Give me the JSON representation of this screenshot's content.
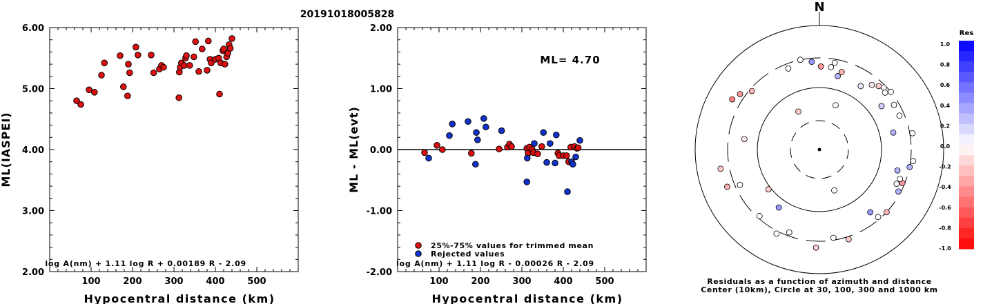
{
  "title": "20191018005828",
  "chart_data": [
    {
      "type": "scatter",
      "ylabel": "ML(IASPEI)",
      "xlabel": "Hypocentral distance (km)",
      "xlim": [
        0,
        600
      ],
      "ylim": [
        2.0,
        6.0
      ],
      "xticks": [
        "100",
        "200",
        "300",
        "400",
        "500"
      ],
      "yticks": [
        "2.00",
        "3.00",
        "4.00",
        "5.00",
        "6.00"
      ],
      "formula": "log A(nm) + 1.11 log R + 0.00189 R - 2.09",
      "series": [
        {
          "color": "#dd1111",
          "points": [
            [
              65,
              4.8
            ],
            [
              75,
              4.74
            ],
            [
              95,
              4.98
            ],
            [
              108,
              4.94
            ],
            [
              125,
              5.22
            ],
            [
              132,
              5.42
            ],
            [
              170,
              5.54
            ],
            [
              178,
              5.03
            ],
            [
              188,
              4.88
            ],
            [
              190,
              5.4
            ],
            [
              193,
              5.26
            ],
            [
              208,
              5.68
            ],
            [
              213,
              5.55
            ],
            [
              245,
              5.55
            ],
            [
              251,
              5.26
            ],
            [
              265,
              5.32
            ],
            [
              270,
              5.38
            ],
            [
              275,
              5.35
            ],
            [
              312,
              4.85
            ],
            [
              313,
              5.27
            ],
            [
              315,
              5.35
            ],
            [
              318,
              5.42
            ],
            [
              325,
              5.38
            ],
            [
              328,
              5.5
            ],
            [
              330,
              5.54
            ],
            [
              338,
              5.38
            ],
            [
              348,
              5.52
            ],
            [
              352,
              5.77
            ],
            [
              360,
              5.28
            ],
            [
              368,
              5.65
            ],
            [
              380,
              5.3
            ],
            [
              383,
              5.78
            ],
            [
              387,
              5.48
            ],
            [
              390,
              5.42
            ],
            [
              400,
              5.48
            ],
            [
              408,
              5.5
            ],
            [
              410,
              4.91
            ],
            [
              413,
              5.42
            ],
            [
              418,
              5.62
            ],
            [
              420,
              5.65
            ],
            [
              423,
              5.4
            ],
            [
              427,
              5.52
            ],
            [
              430,
              5.58
            ],
            [
              433,
              5.72
            ],
            [
              436,
              5.66
            ],
            [
              440,
              5.82
            ]
          ]
        }
      ]
    },
    {
      "type": "scatter",
      "ylabel": "ML - ML(evt)",
      "xlabel": "Hypocentral distance (km)",
      "xlim": [
        0,
        600
      ],
      "ylim": [
        -2.0,
        2.0
      ],
      "xticks": [
        "100",
        "200",
        "300",
        "400",
        "500"
      ],
      "yticks": [
        "-2.00",
        "-1.00",
        "0.00",
        "1.00",
        "2.00"
      ],
      "annotation": "ML= 4.70",
      "formula": "log A(nm) + 1.11 log R - 0.00026 R - 2.09",
      "legend": [
        "25%-75% values for trimmed mean",
        "Rejected values"
      ],
      "series": [
        {
          "name": "25%-75% values for trimmed mean",
          "color": "#dd1111",
          "points": [
            [
              65,
              -0.05
            ],
            [
              95,
              0.07
            ],
            [
              108,
              0.0
            ],
            [
              178,
              -0.06
            ],
            [
              245,
              0.01
            ],
            [
              265,
              0.04
            ],
            [
              270,
              0.09
            ],
            [
              275,
              0.05
            ],
            [
              312,
              0.02
            ],
            [
              315,
              -0.06
            ],
            [
              318,
              0.04
            ],
            [
              325,
              0.0
            ],
            [
              328,
              -0.05
            ],
            [
              338,
              -0.07
            ],
            [
              348,
              0.05
            ],
            [
              387,
              -0.06
            ],
            [
              390,
              -0.1
            ],
            [
              400,
              -0.1
            ],
            [
              408,
              -0.1
            ],
            [
              413,
              -0.2
            ],
            [
              418,
              0.04
            ],
            [
              427,
              0.05
            ],
            [
              433,
              0.02
            ],
            [
              436,
              0.03
            ]
          ]
        },
        {
          "name": "Rejected values",
          "color": "#1133cc",
          "points": [
            [
              75,
              -0.14
            ],
            [
              125,
              0.23
            ],
            [
              132,
              0.42
            ],
            [
              170,
              0.46
            ],
            [
              188,
              -0.24
            ],
            [
              190,
              0.28
            ],
            [
              193,
              0.16
            ],
            [
              208,
              0.51
            ],
            [
              213,
              0.37
            ],
            [
              251,
              0.31
            ],
            [
              313,
              -0.14
            ],
            [
              312,
              -0.53
            ],
            [
              330,
              0.1
            ],
            [
              352,
              0.28
            ],
            [
              360,
              -0.21
            ],
            [
              368,
              0.1
            ],
            [
              380,
              -0.22
            ],
            [
              383,
              0.24
            ],
            [
              410,
              -0.69
            ],
            [
              420,
              -0.2
            ],
            [
              423,
              -0.24
            ],
            [
              430,
              -0.12
            ],
            [
              440,
              0.15
            ]
          ]
        }
      ]
    },
    {
      "type": "polar",
      "north_label": "N",
      "caption_line1": "Residuals as a function of azimuth and distance",
      "caption_line2": "Center (10km), Circle at 30, 100, 300 and 1000 km",
      "colorbar": {
        "title": "Res",
        "ticks": [
          "1.0",
          "0.8",
          "0.6",
          "0.4",
          "0.2",
          "0.0",
          "-0.2",
          "-0.4",
          "-0.6",
          "-0.8",
          "-1.0"
        ]
      },
      "points": [
        {
          "az": 1,
          "ring": 0.67,
          "res": -0.4
        },
        {
          "az": 8,
          "ring": 0.67,
          "res": 0.0
        },
        {
          "az": 14,
          "ring": 0.61,
          "res": 0.3
        },
        {
          "az": 16,
          "ring": 0.65,
          "res": -0.3
        },
        {
          "az": 33,
          "ring": 0.61,
          "res": 0.1
        },
        {
          "az": 39,
          "ring": 0.67,
          "res": -0.1
        },
        {
          "az": 43,
          "ring": 0.7,
          "res": -0.2
        },
        {
          "az": 46,
          "ring": 0.72,
          "res": 0.0
        },
        {
          "az": 49,
          "ring": 0.7,
          "res": 0.0
        },
        {
          "az": 51,
          "ring": 0.74,
          "res": 0.0
        },
        {
          "az": 55,
          "ring": 0.61,
          "res": 0.2
        },
        {
          "az": 59,
          "ring": 0.7,
          "res": 0.0
        },
        {
          "az": 67,
          "ring": 0.7,
          "res": 0.0
        },
        {
          "az": 77,
          "ring": 0.61,
          "res": 0.3
        },
        {
          "az": 80,
          "ring": 0.76,
          "res": 0.0
        },
        {
          "az": 97,
          "ring": 0.76,
          "res": 0.0
        },
        {
          "az": 101,
          "ring": 0.74,
          "res": 0.3
        },
        {
          "az": 105,
          "ring": 0.65,
          "res": 0.3
        },
        {
          "az": 112,
          "ring": 0.72,
          "res": -0.4
        },
        {
          "az": 110,
          "ring": 0.69,
          "res": 0.0
        },
        {
          "az": 114,
          "ring": 0.68,
          "res": 0.0
        },
        {
          "az": 118,
          "ring": 0.72,
          "res": 0.3
        },
        {
          "az": 133,
          "ring": 0.74,
          "res": -0.3
        },
        {
          "az": 139,
          "ring": 0.72,
          "res": 0.0
        },
        {
          "az": 141,
          "ring": 0.65,
          "res": 0.4
        },
        {
          "az": 160,
          "ring": 0.35,
          "res": 0.0
        },
        {
          "az": 171,
          "ring": 0.72,
          "res": 0.0
        },
        {
          "az": 162,
          "ring": 0.76,
          "res": -0.2
        },
        {
          "az": 182,
          "ring": 0.79,
          "res": -0.2
        },
        {
          "az": 200,
          "ring": 0.71,
          "res": 0.0
        },
        {
          "az": 207,
          "ring": 0.76,
          "res": 0.0
        },
        {
          "az": 215,
          "ring": 0.57,
          "res": 0.4
        },
        {
          "az": 222,
          "ring": 0.72,
          "res": 0.0
        },
        {
          "az": 232,
          "ring": 0.52,
          "res": -0.2
        },
        {
          "az": 246,
          "ring": 0.7,
          "res": 0.0
        },
        {
          "az": 248,
          "ring": 0.8,
          "res": -0.3
        },
        {
          "az": 259,
          "ring": 0.81,
          "res": -0.2
        },
        {
          "az": 278,
          "ring": 0.61,
          "res": -0.1
        },
        {
          "az": 300,
          "ring": 0.81,
          "res": -0.5
        },
        {
          "az": 305,
          "ring": 0.78,
          "res": -0.4
        },
        {
          "az": 311,
          "ring": 0.72,
          "res": -0.3
        },
        {
          "az": 331,
          "ring": 0.35,
          "res": -0.2
        },
        {
          "az": 339,
          "ring": 0.7,
          "res": 0.0
        },
        {
          "az": 348,
          "ring": 0.74,
          "res": 0.0
        },
        {
          "az": 355,
          "ring": 0.71,
          "res": 0.4
        },
        {
          "az": 20,
          "ring": 0.38,
          "res": 0.0
        },
        {
          "az": 10,
          "ring": 0.71,
          "res": 0.0
        }
      ]
    }
  ]
}
